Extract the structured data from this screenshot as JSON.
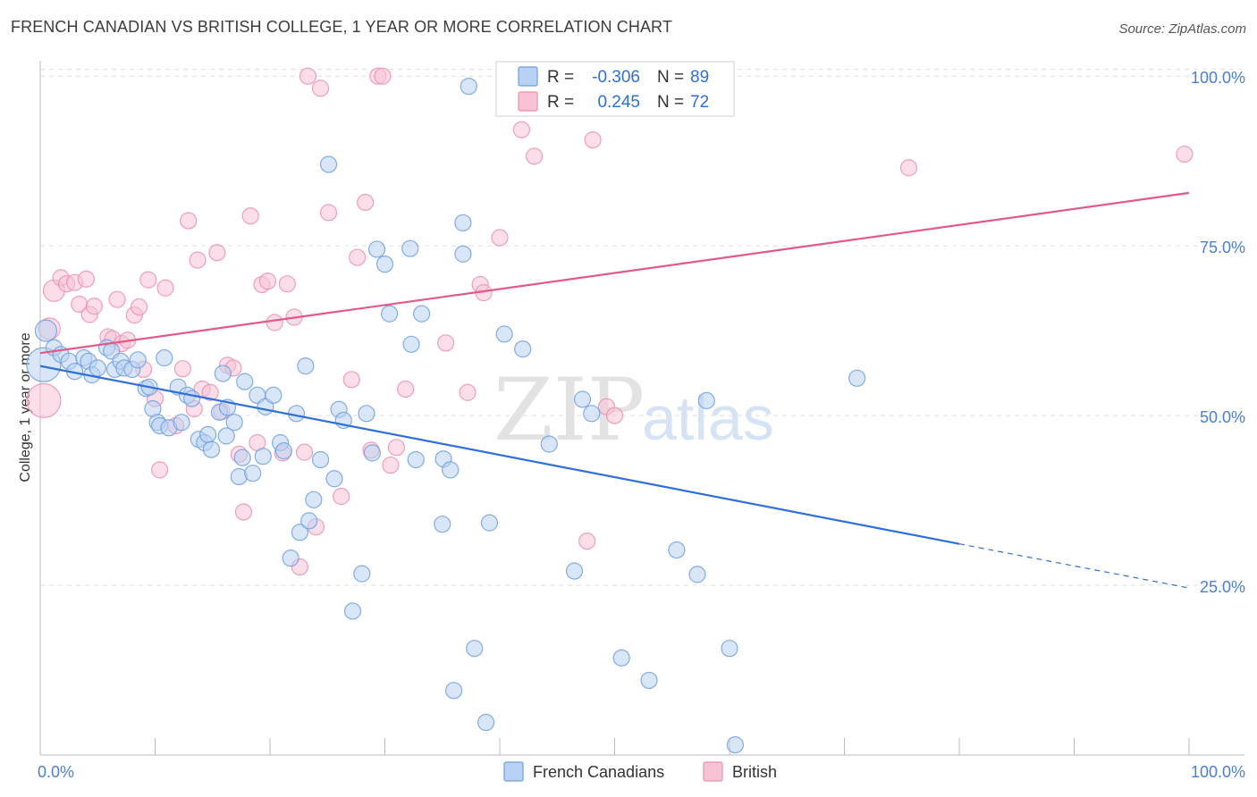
{
  "title": "FRENCH CANADIAN VS BRITISH COLLEGE, 1 YEAR OR MORE CORRELATION CHART",
  "source": "Source: ZipAtlas.com",
  "watermark": {
    "zip": "ZIP",
    "atlas": "atlas"
  },
  "colors": {
    "blue_fill": "#b9d1f2",
    "blue_stroke": "#6f9fe0",
    "blue_line": "#2f6fd6",
    "pink_fill": "#f7c3d4",
    "pink_stroke": "#ec8fb0",
    "pink_line": "#e2588a",
    "grid": "#dedede",
    "axis": "#bbbbbb",
    "tick_text": "#4a7fd1"
  },
  "legend": {
    "rows": [
      {
        "r_label": "R = ",
        "r_value": "-0.306",
        "n_label": "N = ",
        "n_value": "89"
      },
      {
        "r_label": "R = ",
        "r_value": "0.245",
        "n_label": "N = ",
        "n_value": "72"
      }
    ]
  },
  "bottom_legend": {
    "items": [
      "French Canadians",
      "British"
    ]
  },
  "chart_data": {
    "type": "scatter",
    "title": "FRENCH CANADIAN VS BRITISH COLLEGE, 1 YEAR OR MORE CORRELATION CHART",
    "xlabel": "",
    "ylabel": "College, 1 year or more",
    "xlim": [
      0,
      100
    ],
    "ylim": [
      0,
      102
    ],
    "x_tick_labels": [
      "0.0%",
      "100.0%"
    ],
    "y_ticks": [
      25,
      50,
      75,
      100
    ],
    "y_tick_labels": [
      "25.0%",
      "50.0%",
      "75.0%",
      "100.0%"
    ],
    "grid": true,
    "legend_position": "top-center",
    "series": [
      {
        "name": "French Canadians",
        "color": "#6f9fe0",
        "R": -0.306,
        "N": 89,
        "trend": {
          "x0": 0,
          "y0": 57.3,
          "x1": 80,
          "y1": 31.1,
          "dashed_to_x": 100,
          "dashed_to_y": 24.6
        },
        "points": [
          [
            0.3,
            57.5,
            4
          ],
          [
            0.5,
            62.5,
            2
          ],
          [
            1.2,
            60,
            1
          ],
          [
            1.8,
            59,
            1
          ],
          [
            2.5,
            58,
            1
          ],
          [
            3,
            56.5,
            1
          ],
          [
            3.8,
            58.5,
            1
          ],
          [
            4.2,
            58,
            1
          ],
          [
            4.5,
            56,
            1
          ],
          [
            5,
            57,
            1
          ],
          [
            5.8,
            60,
            1
          ],
          [
            6.2,
            59.5,
            1
          ],
          [
            6.5,
            56.8,
            1
          ],
          [
            7,
            58,
            1
          ],
          [
            7.3,
            57,
            1
          ],
          [
            8,
            56.8,
            1
          ],
          [
            8.5,
            58.2,
            1
          ],
          [
            9.2,
            54,
            1
          ],
          [
            9.5,
            54.2,
            1
          ],
          [
            9.8,
            51,
            1
          ],
          [
            10.2,
            49,
            1
          ],
          [
            10.4,
            48.5,
            1
          ],
          [
            10.8,
            58.5,
            1
          ],
          [
            11.2,
            48.2,
            1
          ],
          [
            12,
            54.2,
            1
          ],
          [
            12.3,
            49,
            1
          ],
          [
            12.8,
            53,
            1
          ],
          [
            13.2,
            52.5,
            1
          ],
          [
            13.8,
            46.5,
            1
          ],
          [
            14.3,
            46,
            1
          ],
          [
            14.6,
            47.2,
            1
          ],
          [
            14.9,
            45,
            1
          ],
          [
            15.6,
            50.5,
            1
          ],
          [
            15.9,
            56.2,
            1
          ],
          [
            16.3,
            51.2,
            1
          ],
          [
            16.9,
            49,
            1
          ],
          [
            16.2,
            47,
            1
          ],
          [
            17.3,
            41,
            1
          ],
          [
            17.8,
            55,
            1
          ],
          [
            17.6,
            43.8,
            1
          ],
          [
            18.5,
            41.5,
            1
          ],
          [
            18.9,
            53,
            1
          ],
          [
            19.4,
            44,
            1
          ],
          [
            19.6,
            51.3,
            1
          ],
          [
            20.3,
            53,
            1
          ],
          [
            20.9,
            46,
            1
          ],
          [
            21.2,
            44.8,
            1
          ],
          [
            21.8,
            29,
            1
          ],
          [
            22.3,
            50.3,
            1
          ],
          [
            22.6,
            32.8,
            1
          ],
          [
            23.1,
            57.3,
            1
          ],
          [
            23.4,
            34.5,
            1
          ],
          [
            23.8,
            37.6,
            1
          ],
          [
            24.4,
            43.5,
            1
          ],
          [
            25.1,
            87,
            1
          ],
          [
            25.6,
            40.7,
            1
          ],
          [
            26,
            50.9,
            1
          ],
          [
            26.4,
            49.3,
            1
          ],
          [
            27.2,
            21.2,
            1
          ],
          [
            28,
            26.7,
            1
          ],
          [
            28.4,
            50.3,
            1
          ],
          [
            28.9,
            44.5,
            1
          ],
          [
            29.3,
            74.5,
            1
          ],
          [
            30,
            72.3,
            1
          ],
          [
            30.4,
            65,
            1
          ],
          [
            32.2,
            74.6,
            1
          ],
          [
            32.3,
            60.5,
            1
          ],
          [
            32.7,
            43.5,
            1
          ],
          [
            33.2,
            65,
            1
          ],
          [
            35,
            34,
            1
          ],
          [
            35.1,
            43.6,
            1
          ],
          [
            35.7,
            42,
            1
          ],
          [
            36,
            9.5,
            1
          ],
          [
            36.8,
            73.8,
            1
          ],
          [
            36.8,
            78.4,
            1
          ],
          [
            37.3,
            98.5,
            1
          ],
          [
            37.8,
            15.7,
            1
          ],
          [
            38.8,
            4.8,
            1
          ],
          [
            39.1,
            34.2,
            1
          ],
          [
            40.4,
            62,
            1
          ],
          [
            42,
            59.8,
            1
          ],
          [
            44.3,
            45.8,
            1
          ],
          [
            46.5,
            27.1,
            1
          ],
          [
            47.2,
            52.4,
            1
          ],
          [
            48,
            50.3,
            1
          ],
          [
            50.6,
            14.3,
            1
          ],
          [
            53,
            11,
            1
          ],
          [
            55.4,
            30.2,
            1
          ],
          [
            57.2,
            26.6,
            1
          ],
          [
            58,
            52.2,
            1
          ],
          [
            60,
            15.7,
            1
          ],
          [
            60.5,
            1.5,
            1
          ],
          [
            71.1,
            55.5,
            1
          ]
        ]
      },
      {
        "name": "British",
        "color": "#ec8fb0",
        "R": 0.245,
        "N": 72,
        "trend": {
          "x0": 0,
          "y0": 59.2,
          "x1": 100,
          "y1": 82.8
        },
        "points": [
          [
            0.3,
            52.2,
            4
          ],
          [
            0.8,
            62.8,
            2
          ],
          [
            1.2,
            68.4,
            2
          ],
          [
            1.8,
            70.3,
            1
          ],
          [
            2.3,
            69.4,
            1
          ],
          [
            3,
            69.6,
            1
          ],
          [
            3.4,
            66.4,
            1
          ],
          [
            4,
            70.1,
            1
          ],
          [
            4.3,
            64.9,
            1
          ],
          [
            4.7,
            66.1,
            1
          ],
          [
            5.9,
            61.6,
            1
          ],
          [
            6.3,
            61.3,
            1
          ],
          [
            6.7,
            67.1,
            1
          ],
          [
            7.1,
            60.6,
            1
          ],
          [
            7.6,
            61.1,
            1
          ],
          [
            8.2,
            64.8,
            1
          ],
          [
            8.6,
            66,
            1
          ],
          [
            9,
            56.8,
            1
          ],
          [
            9.4,
            70,
            1
          ],
          [
            10,
            52.5,
            1
          ],
          [
            10.4,
            42,
            1
          ],
          [
            10.9,
            68.8,
            1
          ],
          [
            11.8,
            48.5,
            1
          ],
          [
            12.4,
            56.9,
            1
          ],
          [
            12.9,
            78.7,
            1
          ],
          [
            13.4,
            51,
            1
          ],
          [
            13.7,
            72.9,
            1
          ],
          [
            14.1,
            53.9,
            1
          ],
          [
            14.8,
            53.4,
            1
          ],
          [
            15.4,
            74,
            1
          ],
          [
            15.8,
            50.6,
            1
          ],
          [
            16.3,
            57.4,
            1
          ],
          [
            16.8,
            57,
            1
          ],
          [
            17.3,
            44.3,
            1
          ],
          [
            17.7,
            35.8,
            1
          ],
          [
            18.3,
            79.4,
            1
          ],
          [
            18.9,
            46,
            1
          ],
          [
            19.3,
            69.3,
            1
          ],
          [
            19.8,
            69.8,
            1
          ],
          [
            20.4,
            63.7,
            1
          ],
          [
            21.1,
            44.5,
            1
          ],
          [
            21.5,
            69.4,
            1
          ],
          [
            22.1,
            64.5,
            1
          ],
          [
            22.6,
            27.7,
            1
          ],
          [
            23,
            44.6,
            1
          ],
          [
            23.3,
            100,
            1
          ],
          [
            24,
            33.6,
            1
          ],
          [
            24.4,
            98.2,
            1
          ],
          [
            25.1,
            79.9,
            1
          ],
          [
            26.2,
            38.1,
            1
          ],
          [
            27.1,
            55.3,
            1
          ],
          [
            27.6,
            73.3,
            1
          ],
          [
            28.3,
            81.4,
            1
          ],
          [
            28.8,
            44.9,
            1
          ],
          [
            29.4,
            100,
            1
          ],
          [
            29.8,
            100,
            1
          ],
          [
            30.5,
            42.7,
            1
          ],
          [
            31,
            45.3,
            1
          ],
          [
            31.8,
            53.9,
            1
          ],
          [
            35.3,
            60.7,
            1
          ],
          [
            37.2,
            53.4,
            1
          ],
          [
            38.3,
            69.3,
            1
          ],
          [
            38.6,
            68.1,
            1
          ],
          [
            40,
            76.2,
            1
          ],
          [
            41.9,
            92.1,
            1
          ],
          [
            43,
            88.2,
            1
          ],
          [
            47.6,
            31.5,
            1
          ],
          [
            48.1,
            90.6,
            1
          ],
          [
            49.3,
            51.3,
            1
          ],
          [
            50,
            50,
            1
          ],
          [
            75.6,
            86.5,
            1
          ],
          [
            99.6,
            88.5,
            1
          ]
        ]
      }
    ]
  }
}
